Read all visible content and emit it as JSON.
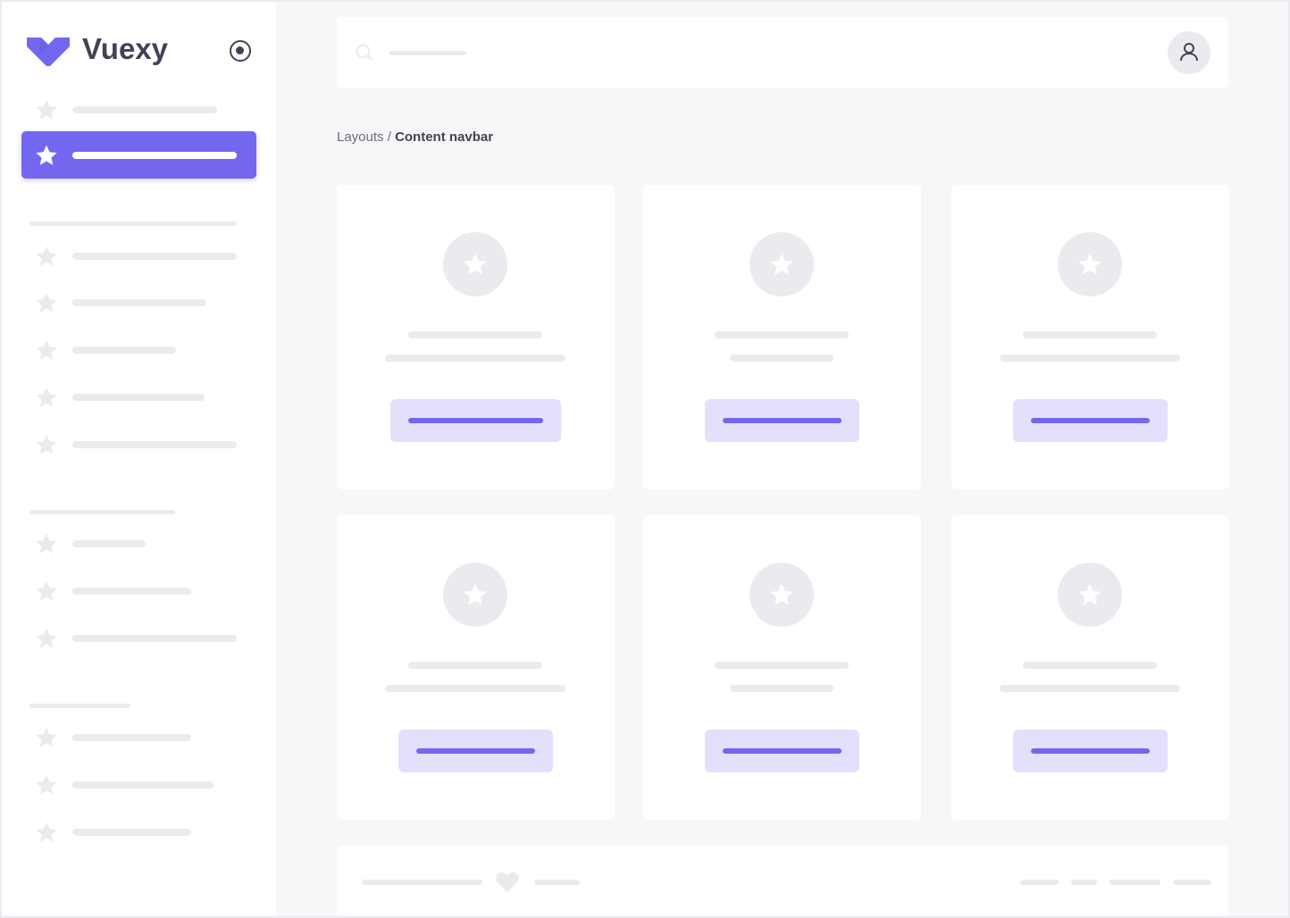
{
  "app": {
    "brand": "Vuexy",
    "accent": "#7367f0",
    "logo_icon": "vuexy-logo-icon",
    "pin_icon": "radio-circle-icon"
  },
  "header": {
    "search_icon": "search-icon",
    "user_icon": "user-icon"
  },
  "breadcrumb": {
    "parent": "Layouts",
    "separator": " / ",
    "current": "Content navbar"
  },
  "sidebar": {
    "active_index": 1,
    "item_icon": "star-icon"
  },
  "footer": {
    "heart_icon": "heart-icon"
  }
}
